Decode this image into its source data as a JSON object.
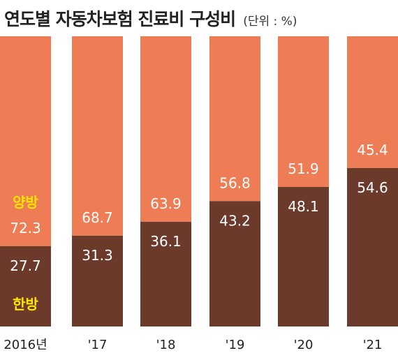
{
  "chart_data": {
    "type": "bar",
    "stacked": true,
    "title": "연도별 자동차보험 진료비 구성비",
    "unit": "(단위 : %)",
    "categories": [
      "2016년",
      "'17",
      "'18",
      "'19",
      "'20",
      "'21"
    ],
    "series": [
      {
        "name": "한방",
        "values": [
          27.7,
          31.3,
          36.1,
          43.2,
          48.1,
          54.6
        ],
        "color": "#6b3a2a"
      },
      {
        "name": "양방",
        "values": [
          72.3,
          68.7,
          63.9,
          56.8,
          51.9,
          45.4
        ],
        "color": "#ee7d55"
      }
    ],
    "ylim": [
      0,
      100
    ],
    "grid": false,
    "legend": "inline-left",
    "label_color": "#ffffff",
    "legend_label_color": "#ffe600"
  }
}
